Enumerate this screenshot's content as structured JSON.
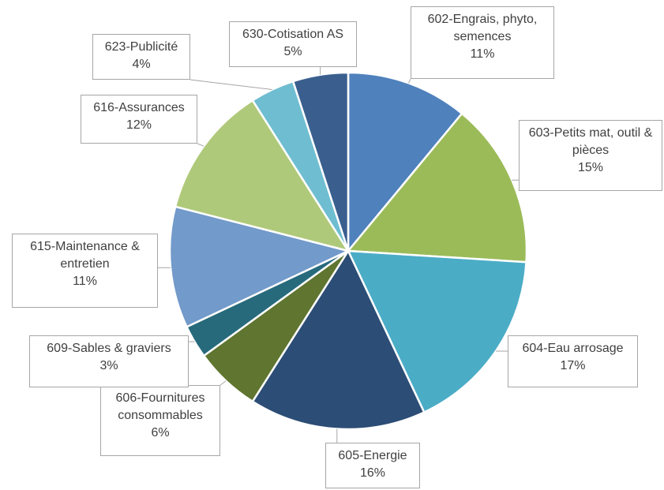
{
  "chart_data": {
    "type": "pie",
    "categories": [
      "602-Engrais, phyto, semences",
      "603-Petits mat, outil & pièces",
      "604-Eau arrosage",
      "605-Energie",
      "606-Fournitures consommables",
      "609-Sables & graviers",
      "615-Maintenance & entretien",
      "616-Assurances",
      "623-Publicité",
      "630-Cotisation AS"
    ],
    "values": [
      11,
      15,
      17,
      16,
      6,
      3,
      11,
      12,
      4,
      5
    ],
    "value_labels": [
      "11%",
      "15%",
      "17%",
      "16%",
      "6%",
      "3%",
      "11%",
      "12%",
      "4%",
      "5%"
    ],
    "colors": [
      "#4f81bd",
      "#9bbb59",
      "#4bacc6",
      "#2c4d75",
      "#5f7530",
      "#276a7c",
      "#729aca",
      "#afc97a",
      "#6fbdd1",
      "#3a5f8f"
    ]
  }
}
